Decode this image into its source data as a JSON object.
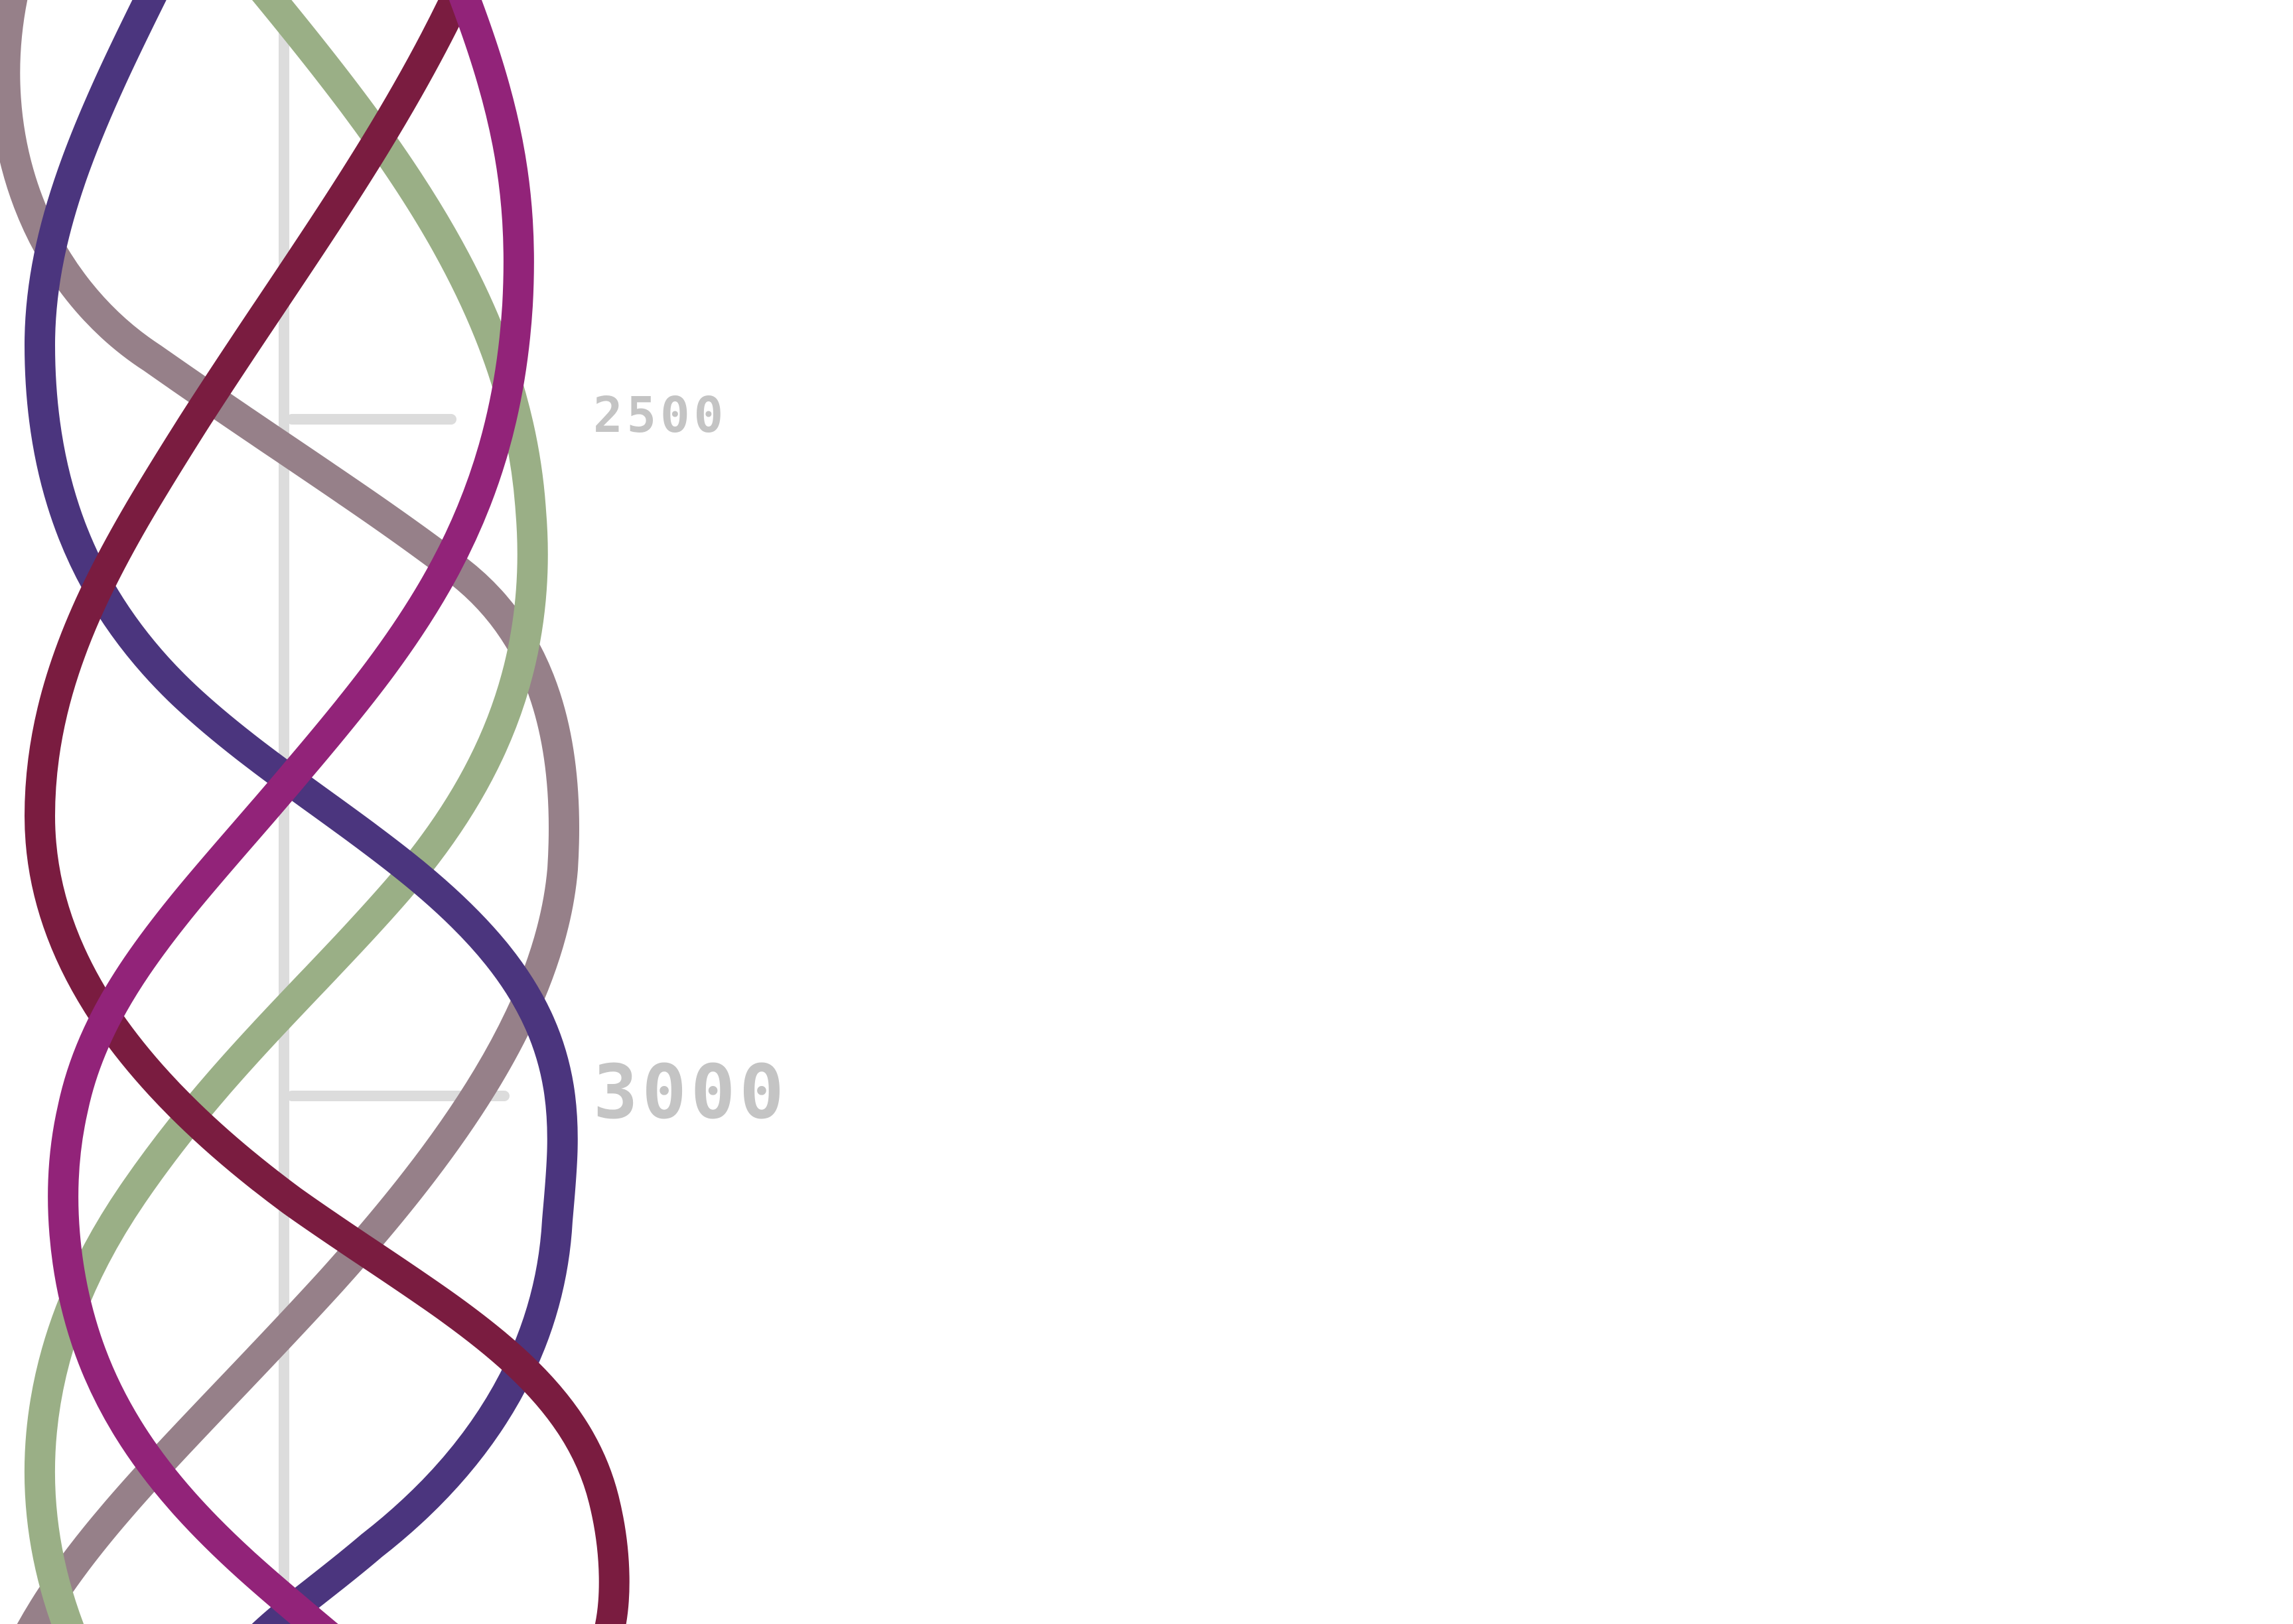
{
  "scale": {
    "markers": [
      {
        "label": "2500"
      },
      {
        "label": "3000"
      }
    ],
    "axis_color": "#dcdcdc",
    "label_color": "#c4c4c4"
  },
  "strands": [
    {
      "name": "mauve-grey",
      "color": "#968089"
    },
    {
      "name": "sage-green",
      "color": "#9aaf86"
    },
    {
      "name": "indigo",
      "color": "#4b357e"
    },
    {
      "name": "burgundy",
      "color": "#7a1c40"
    },
    {
      "name": "magenta",
      "color": "#922379"
    }
  ]
}
